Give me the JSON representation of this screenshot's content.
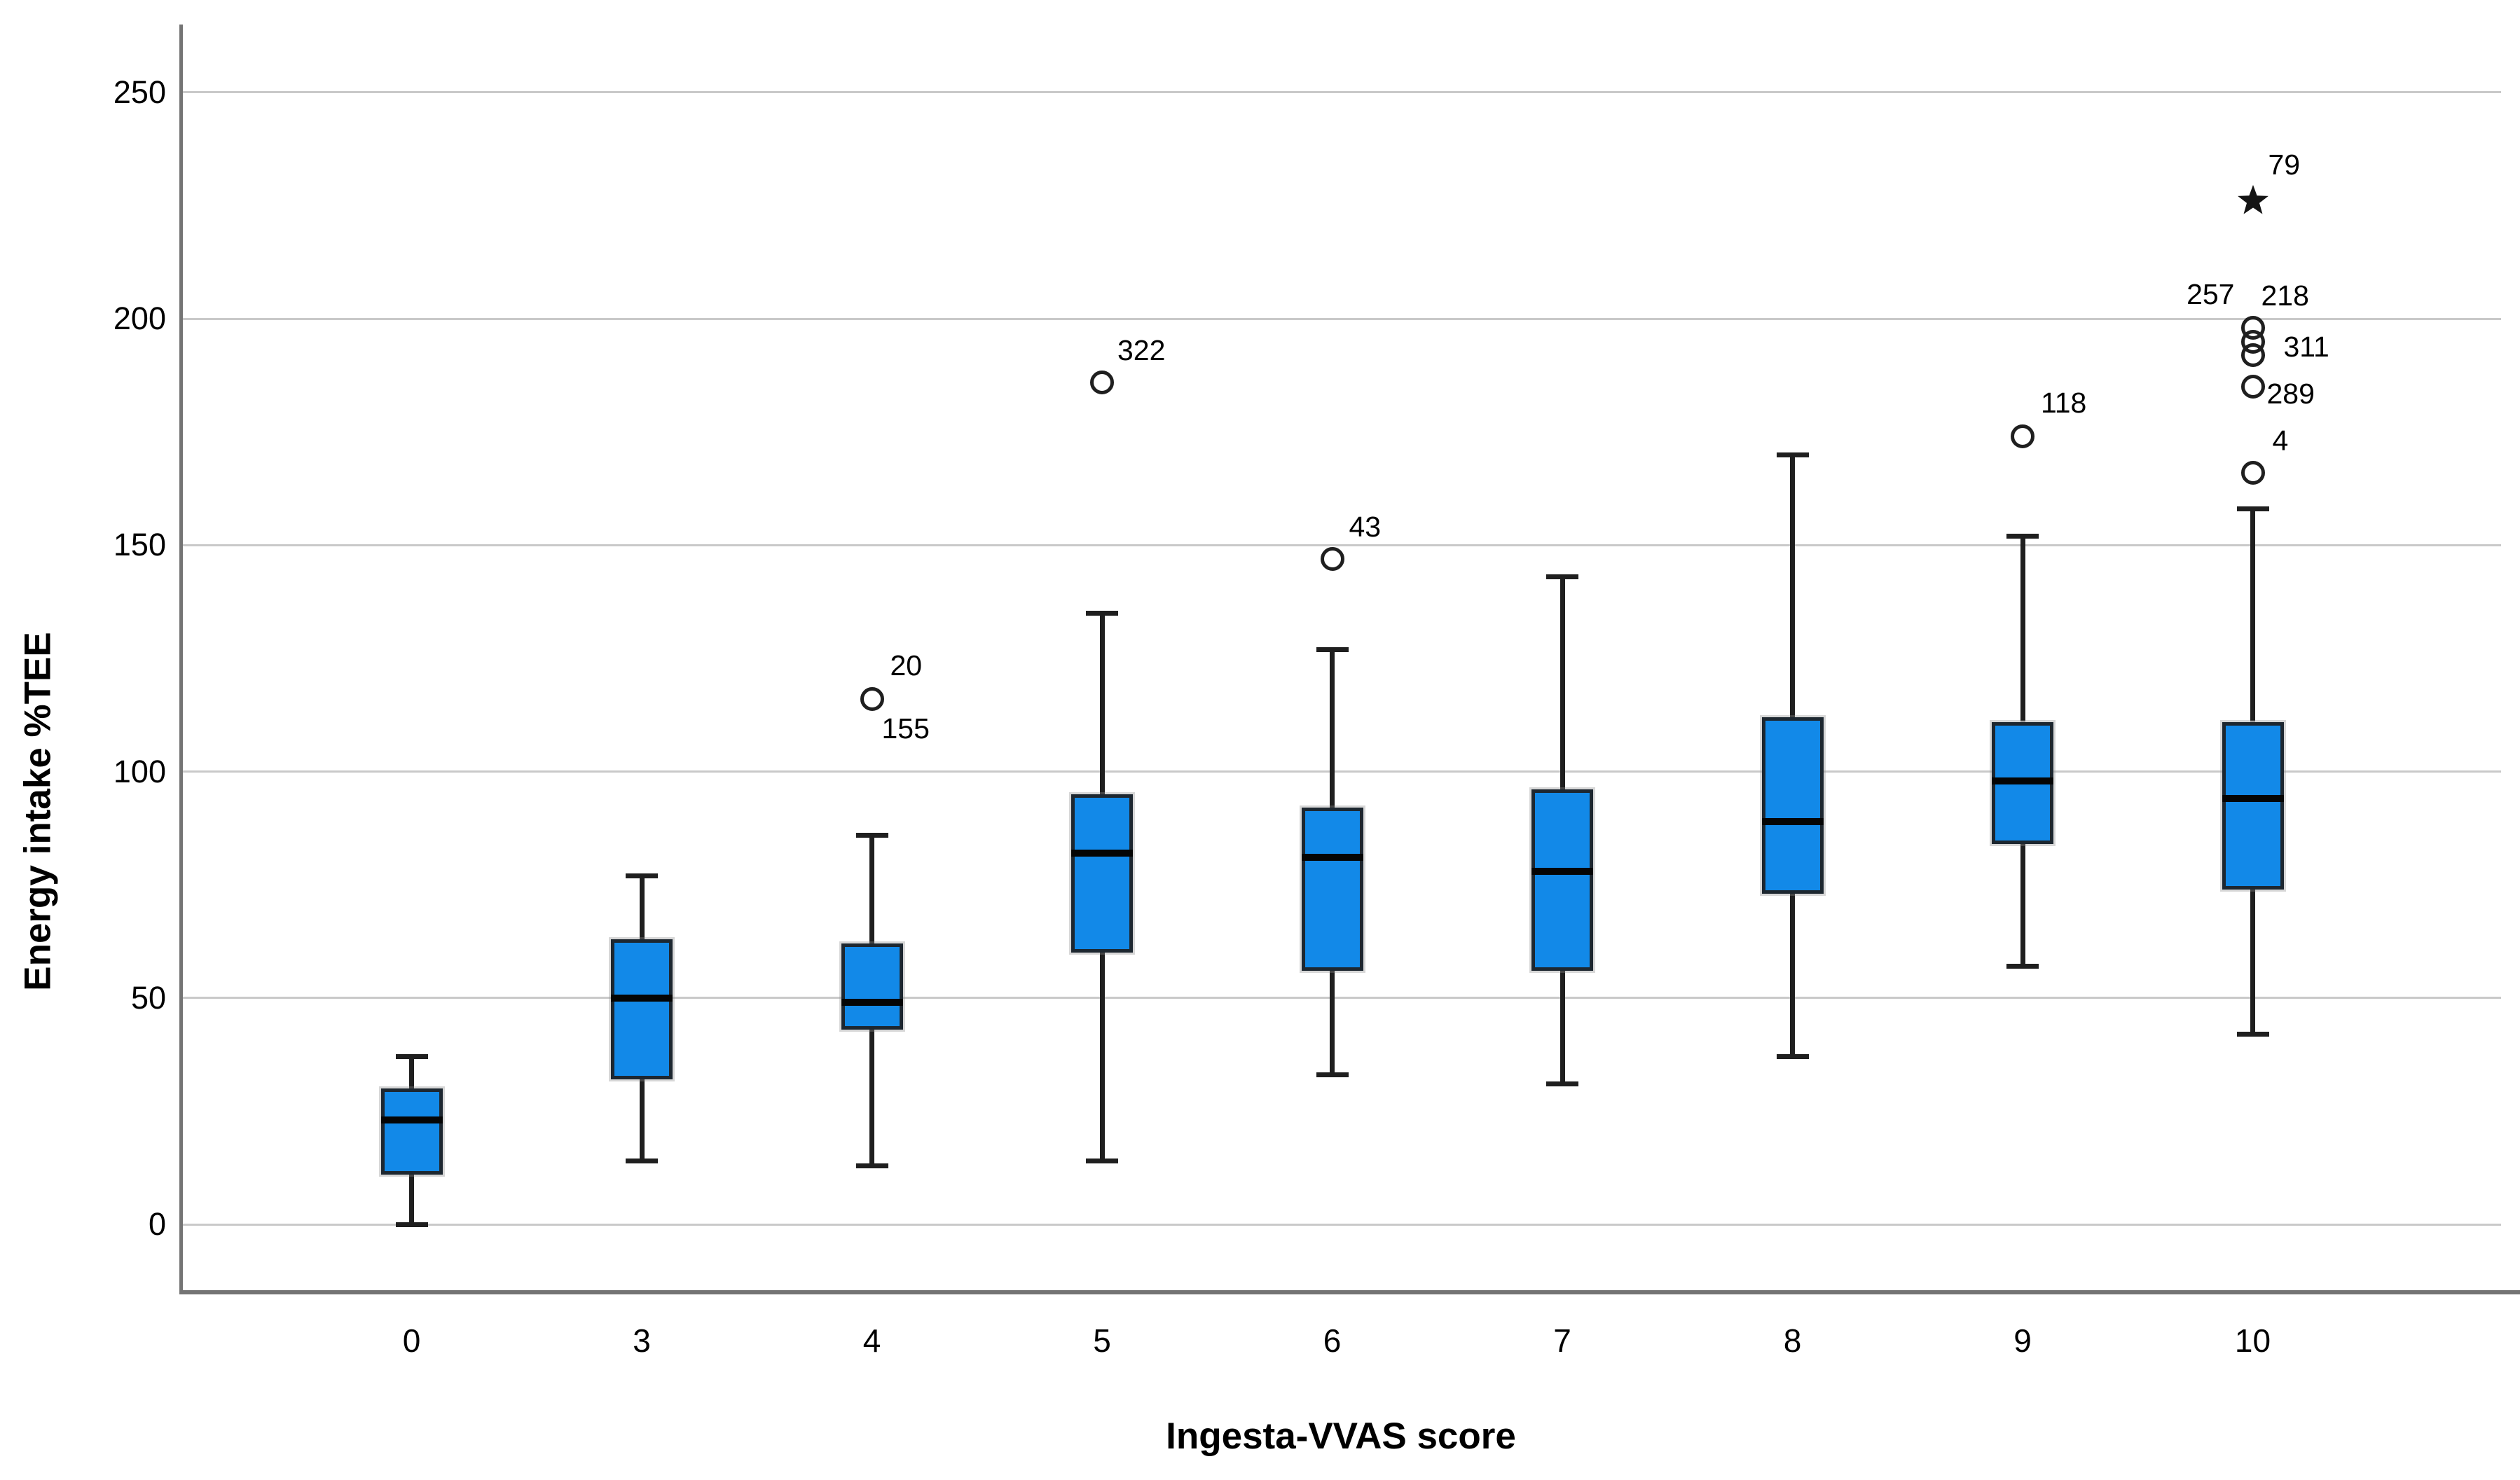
{
  "chart_data": {
    "type": "box",
    "title": "",
    "xlabel": "Ingesta-VVAS score",
    "ylabel": "Energy intake %TEE",
    "categories": [
      "0",
      "3",
      "4",
      "5",
      "6",
      "7",
      "8",
      "9",
      "10"
    ],
    "yticks": [
      0,
      50,
      100,
      150,
      200,
      250
    ],
    "ylim": [
      -15,
      265
    ],
    "grid": true,
    "legend_position": "none",
    "boxes": [
      {
        "category": "0",
        "low": 0,
        "q1": 11,
        "median": 23,
        "q3": 30,
        "high": 37,
        "outliers": [],
        "extremes": []
      },
      {
        "category": "3",
        "low": 14,
        "q1": 32,
        "median": 50,
        "q3": 63,
        "high": 77,
        "outliers": [],
        "extremes": []
      },
      {
        "category": "4",
        "low": 13,
        "q1": 43,
        "median": 49,
        "q3": 62,
        "high": 86,
        "outliers": [
          {
            "value": 116,
            "labels": [
              {
                "text": "20",
                "dx": 26,
                "dy": -48
              },
              {
                "text": "155",
                "dx": 14,
                "dy": 42
              }
            ]
          }
        ],
        "extremes": []
      },
      {
        "category": "5",
        "low": 14,
        "q1": 60,
        "median": 82,
        "q3": 95,
        "high": 135,
        "outliers": [
          {
            "value": 186,
            "labels": [
              {
                "text": "322",
                "dx": 22,
                "dy": -46
              }
            ]
          }
        ],
        "extremes": []
      },
      {
        "category": "6",
        "low": 33,
        "q1": 56,
        "median": 81,
        "q3": 92,
        "high": 127,
        "outliers": [
          {
            "value": 147,
            "labels": [
              {
                "text": "43",
                "dx": 24,
                "dy": -46
              }
            ]
          }
        ],
        "extremes": []
      },
      {
        "category": "7",
        "low": 31,
        "q1": 56,
        "median": 78,
        "q3": 96,
        "high": 143,
        "outliers": [],
        "extremes": []
      },
      {
        "category": "8",
        "low": 37,
        "q1": 73,
        "median": 89,
        "q3": 112,
        "high": 170,
        "outliers": [],
        "extremes": []
      },
      {
        "category": "9",
        "low": 57,
        "q1": 84,
        "median": 98,
        "q3": 111,
        "high": 152,
        "outliers": [
          {
            "value": 174,
            "labels": [
              {
                "text": "118",
                "dx": 26,
                "dy": -48
              }
            ]
          }
        ],
        "extremes": []
      },
      {
        "category": "10",
        "low": 42,
        "q1": 74,
        "median": 94,
        "q3": 111,
        "high": 158,
        "outliers": [
          {
            "value": 198,
            "labels": [
              {
                "text": "257",
                "dx": -26,
                "dy": -48,
                "align": "right"
              },
              {
                "text": "218",
                "dx": 12,
                "dy": -46
              }
            ]
          },
          {
            "value": 195,
            "labels": []
          },
          {
            "value": 192,
            "labels": [
              {
                "text": "311",
                "dx": 44,
                "dy": -12
              }
            ]
          },
          {
            "value": 185,
            "labels": [
              {
                "text": "289",
                "dx": 20,
                "dy": 10
              }
            ]
          },
          {
            "value": 166,
            "labels": [
              {
                "text": "4",
                "dx": 28,
                "dy": -46
              }
            ]
          }
        ],
        "extremes": [
          {
            "value": 226,
            "labels": [
              {
                "text": "79",
                "dx": 22,
                "dy": -52
              }
            ]
          }
        ]
      }
    ]
  },
  "colors": {
    "box_fill": "#1289E8",
    "box_border": "#1D2730",
    "median": "#050505",
    "whisker": "#1F1F1F",
    "grid": "#C9C9C9",
    "axis": "#747474",
    "text": "#000000"
  }
}
